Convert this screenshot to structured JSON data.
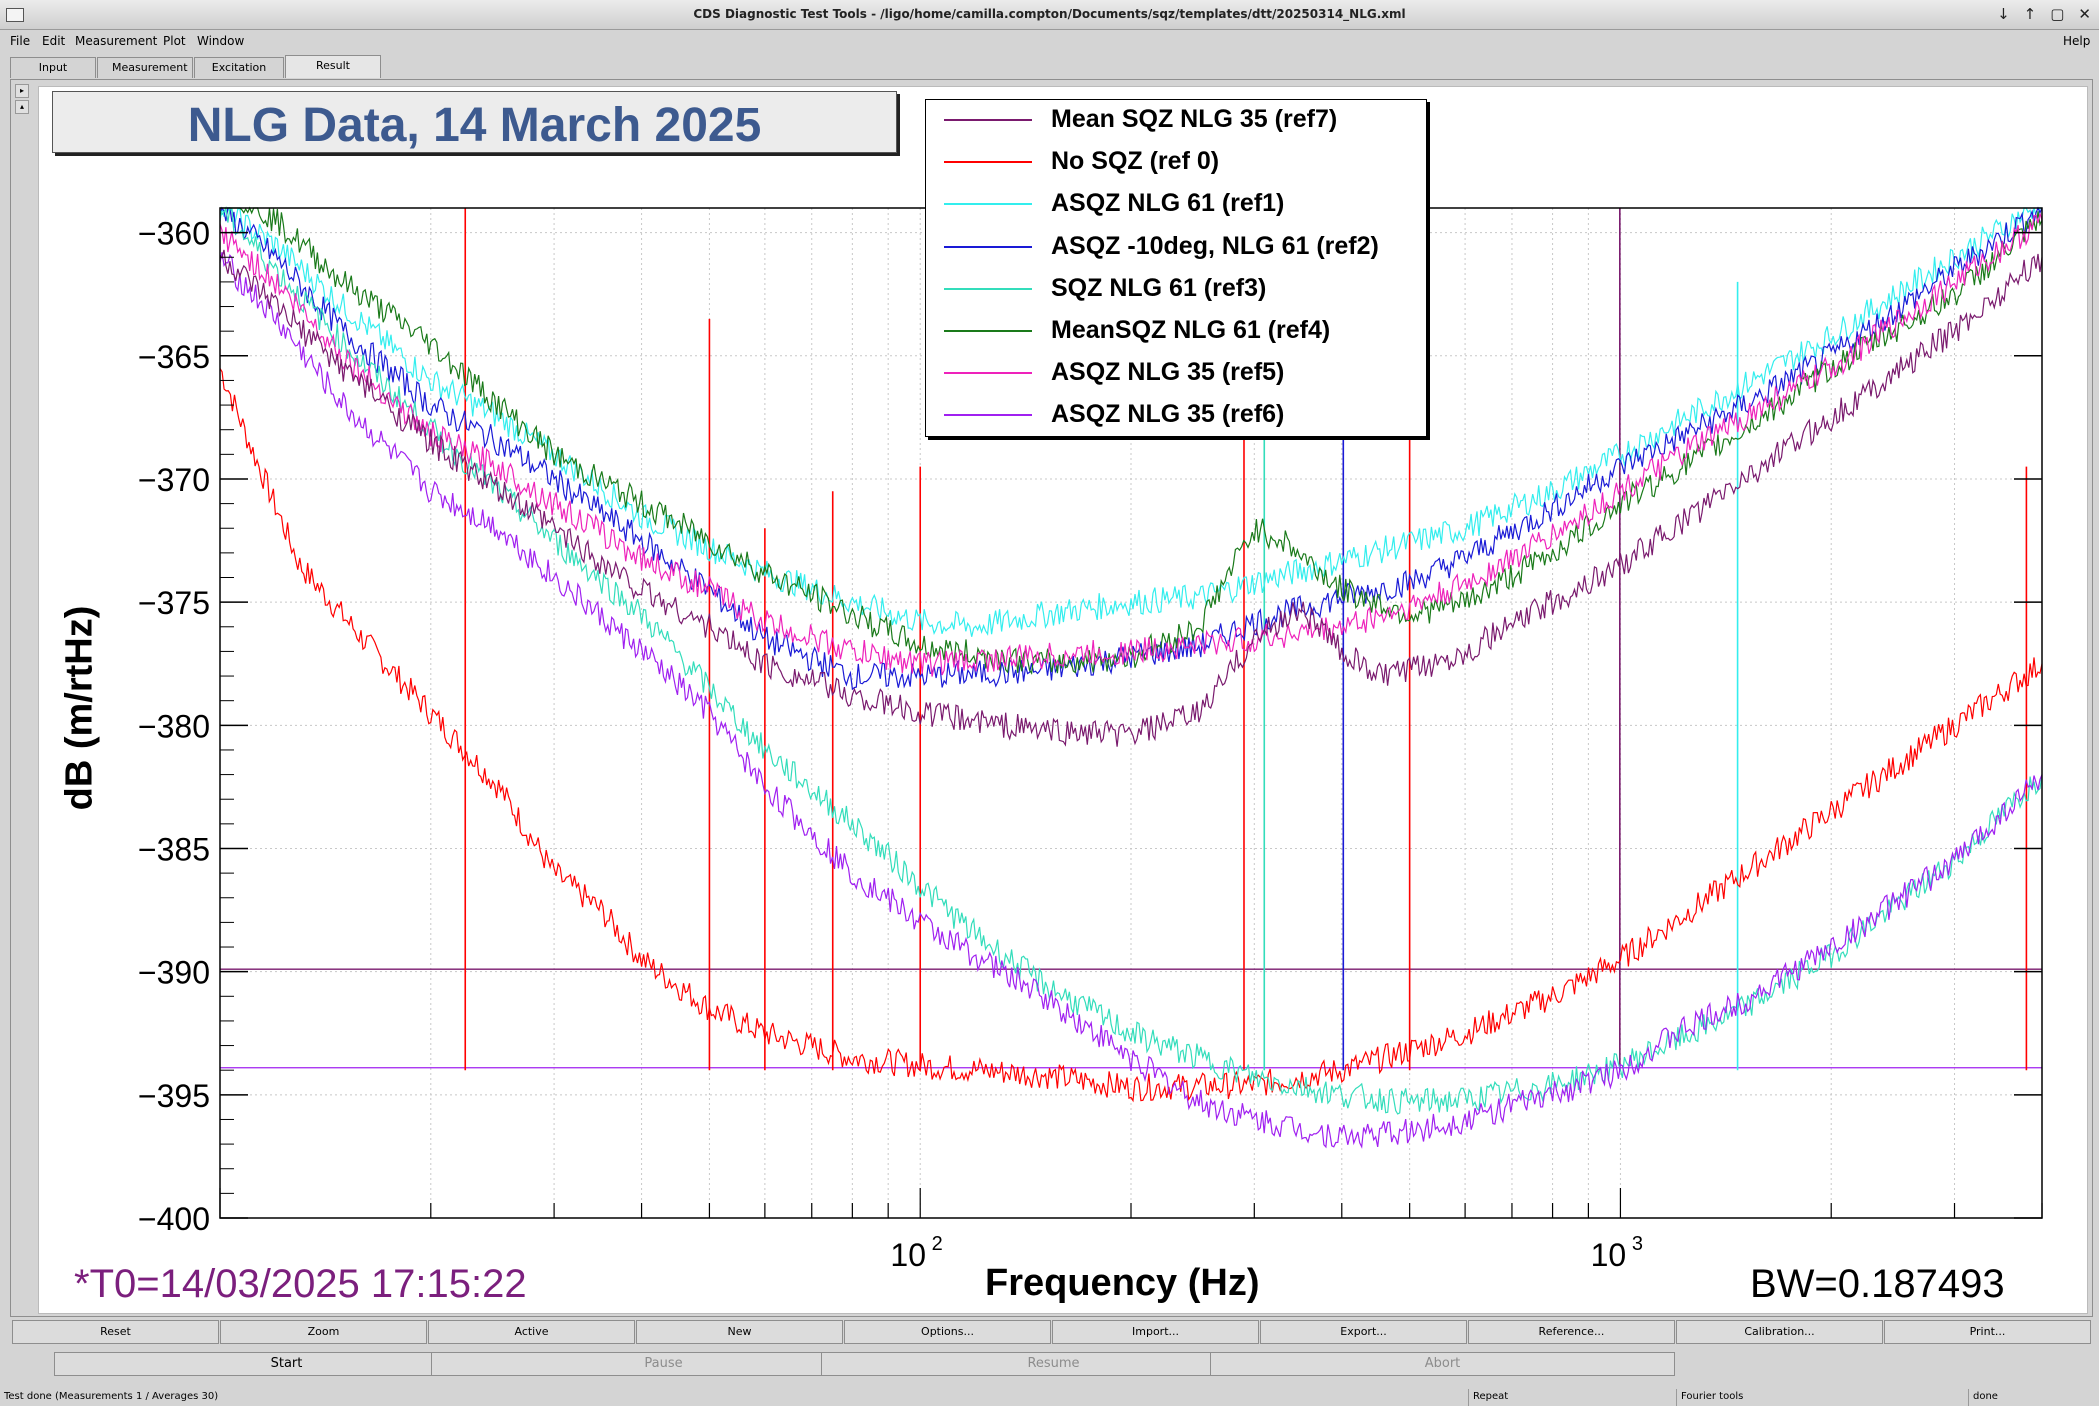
{
  "window": {
    "title": "CDS Diagnostic Test Tools - /ligo/home/camilla.compton/Documents/sqz/templates/dtt/20250314_NLG.xml",
    "controls": [
      "↓",
      "↑",
      "▢",
      "✕"
    ]
  },
  "menu": {
    "file": "File",
    "edit": "Edit",
    "measurement": "Measurement",
    "plot": "Plot",
    "window": "Window",
    "help": "Help"
  },
  "tabs": [
    "Input",
    "Measurement",
    "Excitation",
    "Result"
  ],
  "plot": {
    "title": "NLG Data, 14 March 2025",
    "t0": "*T0=14/03/2025 17:15:22",
    "bw": "BW=0.187493",
    "xlabel": "Frequency (Hz)",
    "ylabel": "dB (m/rtHz)",
    "legend": [
      {
        "label": "Mean SQZ NLG 35 (ref7)",
        "color": "#7a1a6e"
      },
      {
        "label": "No SQZ (ref 0)",
        "color": "#ff0000"
      },
      {
        "label": "ASQZ NLG 61 (ref1)",
        "color": "#33eeee"
      },
      {
        "label": "ASQZ -10deg, NLG 61 (ref2)",
        "color": "#1a1ad6"
      },
      {
        "label": "SQZ NLG 61 (ref3)",
        "color": "#33ddbb"
      },
      {
        "label": "MeanSQZ NLG 61 (ref4)",
        "color": "#1a7a1a"
      },
      {
        "label": "ASQZ NLG 35 (ref5)",
        "color": "#ee22bb"
      },
      {
        "label": "ASQZ NLG 35 (ref6)",
        "color": "#a020f0"
      }
    ]
  },
  "chart_data": {
    "type": "line",
    "xscale": "log",
    "xlim": [
      10,
      4000
    ],
    "ylim": [
      -400,
      -359
    ],
    "yticks": [
      -360,
      -365,
      -370,
      -375,
      -380,
      -385,
      -390,
      -395,
      -400
    ],
    "ytick_labels": [
      "−360",
      "−365",
      "−370",
      "−375",
      "−380",
      "−385",
      "−390",
      "−395",
      "−400"
    ],
    "xtick_labels": [
      {
        "x": 100,
        "label": "10",
        "exp": "2"
      },
      {
        "x": 1000,
        "label": "10",
        "exp": "3"
      }
    ],
    "hlines": [
      {
        "y": -389.9,
        "color": "#7a1a6e"
      },
      {
        "y": -393.9,
        "color": "#a020f0"
      }
    ],
    "series": [
      {
        "name": "No SQZ (ref 0)",
        "color": "#ff0000",
        "x": [
          10,
          11,
          13,
          16,
          20,
          25,
          30,
          35,
          40,
          50,
          60,
          80,
          100,
          150,
          200,
          300,
          400,
          500,
          600,
          800,
          1000,
          1500,
          2000,
          3000,
          4000
        ],
        "y": [
          -365.5,
          -368.5,
          -373.5,
          -376.5,
          -379.5,
          -382.5,
          -386,
          -387.5,
          -389.5,
          -391.5,
          -392.5,
          -393.5,
          -393.8,
          -394.2,
          -394.7,
          -394.6,
          -394,
          -393.2,
          -392.5,
          -391,
          -389.5,
          -386,
          -383.5,
          -380,
          -377.5
        ]
      },
      {
        "name": "ASQZ NLG 61 (ref1)",
        "color": "#33eeee",
        "x": [
          10,
          12,
          15,
          20,
          25,
          30,
          40,
          50,
          60,
          80,
          100,
          120,
          150,
          200,
          250,
          300,
          400,
          500,
          600,
          800,
          1000,
          1500,
          2000,
          3000,
          4000
        ],
        "y": [
          -359,
          -360.5,
          -363,
          -366,
          -367.5,
          -369,
          -371.5,
          -372.8,
          -373.8,
          -375,
          -375.8,
          -376,
          -375.5,
          -375,
          -374.8,
          -374.2,
          -373.3,
          -372.6,
          -372,
          -370.5,
          -369,
          -366.2,
          -364.2,
          -361,
          -358.8
        ]
      },
      {
        "name": "ASQZ -10deg, NLG 61 (ref2)",
        "color": "#1a1ad6",
        "x": [
          10,
          12,
          15,
          20,
          25,
          30,
          40,
          50,
          60,
          80,
          100,
          150,
          200,
          250,
          300,
          400,
          500,
          600,
          800,
          1000,
          1500,
          2000,
          3000,
          4000
        ],
        "y": [
          -359,
          -361,
          -364,
          -367,
          -368.5,
          -370,
          -372.5,
          -374.5,
          -376.5,
          -378,
          -378,
          -377.8,
          -377.2,
          -376.8,
          -375.8,
          -374.8,
          -374.2,
          -373.2,
          -371.2,
          -369.5,
          -367,
          -365,
          -361.5,
          -359
        ]
      },
      {
        "name": "SQZ NLG 61 (ref3)",
        "color": "#33ddbb",
        "x": [
          10,
          12,
          15,
          20,
          25,
          30,
          40,
          50,
          60,
          80,
          100,
          120,
          150,
          200,
          250,
          300,
          400,
          500,
          600,
          800,
          1000,
          1200,
          1500,
          2000,
          3000,
          4000
        ],
        "y": [
          -359,
          -361.5,
          -364.5,
          -368,
          -370.5,
          -372.5,
          -375.5,
          -378.5,
          -381,
          -384,
          -386.5,
          -388.5,
          -390.5,
          -392.5,
          -393.5,
          -394.3,
          -395,
          -395.3,
          -395.2,
          -394.6,
          -393.8,
          -392.8,
          -391.5,
          -389.3,
          -385.5,
          -382
        ]
      },
      {
        "name": "MeanSQZ NLG 61 (ref4)",
        "color": "#1a7a1a",
        "x": [
          10,
          12,
          15,
          20,
          25,
          30,
          40,
          50,
          60,
          80,
          100,
          150,
          200,
          250,
          280,
          300,
          330,
          400,
          500,
          600,
          800,
          1000,
          1500,
          2000,
          3000,
          4000
        ],
        "y": [
          -358,
          -359.5,
          -362,
          -364.5,
          -367,
          -369,
          -371,
          -372.5,
          -373.8,
          -375.5,
          -376.8,
          -377.5,
          -377.2,
          -376,
          -373.5,
          -372,
          -372.5,
          -374.5,
          -375.5,
          -375,
          -373,
          -371,
          -368,
          -365.5,
          -362.5,
          -359.5
        ]
      },
      {
        "name": "ASQZ NLG 35 (ref5)",
        "color": "#ee22bb",
        "x": [
          10,
          12,
          15,
          20,
          25,
          30,
          40,
          50,
          60,
          80,
          100,
          150,
          200,
          300,
          400,
          500,
          600,
          800,
          1000,
          1500,
          2000,
          3000,
          4000
        ],
        "y": [
          -360,
          -362,
          -365,
          -368.2,
          -369.5,
          -371,
          -373.2,
          -374.5,
          -375.8,
          -377,
          -377.5,
          -377.2,
          -377,
          -376.5,
          -376,
          -375.2,
          -374.3,
          -372.3,
          -370.5,
          -367.5,
          -365.5,
          -362,
          -359.5
        ]
      },
      {
        "name": "ASQZ NLG 35 (ref6)",
        "color": "#a020f0",
        "x": [
          10,
          12,
          15,
          20,
          25,
          30,
          40,
          50,
          60,
          80,
          100,
          150,
          200,
          250,
          300,
          400,
          500,
          600,
          800,
          1000,
          1200,
          1500,
          2000,
          3000,
          4000
        ],
        "y": [
          -361,
          -363.5,
          -367,
          -370.5,
          -372,
          -374,
          -377,
          -379.5,
          -382.5,
          -386,
          -388,
          -391,
          -393.5,
          -395.3,
          -396,
          -396.7,
          -396.5,
          -396,
          -395,
          -394,
          -392.5,
          -391.2,
          -389,
          -385.5,
          -382
        ]
      },
      {
        "name": "Mean SQZ NLG 35 (ref7)",
        "color": "#7a1a6e",
        "x": [
          10,
          12,
          15,
          20,
          25,
          30,
          40,
          50,
          60,
          80,
          100,
          150,
          200,
          250,
          300,
          350,
          400,
          450,
          500,
          600,
          800,
          1000,
          1500,
          2000,
          3000,
          4000
        ],
        "y": [
          -361,
          -363,
          -365.5,
          -368.5,
          -370.5,
          -372,
          -374.5,
          -376,
          -377.5,
          -378.8,
          -379.5,
          -380.2,
          -380.4,
          -379.5,
          -376.5,
          -375.2,
          -377,
          -378,
          -377.8,
          -377,
          -375,
          -373.5,
          -370,
          -367.5,
          -364,
          -361
        ]
      }
    ],
    "spikes": [
      {
        "x": 22.4,
        "top": -359,
        "color": "#ff0000"
      },
      {
        "x": 50,
        "top": -363.5,
        "color": "#ff0000"
      },
      {
        "x": 60,
        "top": -372,
        "color": "#ff0000"
      },
      {
        "x": 75,
        "top": -370.5,
        "color": "#ff0000"
      },
      {
        "x": 100,
        "top": -369.5,
        "color": "#ff0000"
      },
      {
        "x": 290,
        "top": -359,
        "color": "#ff0000"
      },
      {
        "x": 310,
        "top": -359,
        "color": "#33ddbb"
      },
      {
        "x": 402,
        "top": -359,
        "color": "#1a1ad6"
      },
      {
        "x": 500,
        "top": -359,
        "color": "#ff0000"
      },
      {
        "x": 998,
        "top": -359,
        "color": "#7a1a6e"
      },
      {
        "x": 1470,
        "top": -362,
        "color": "#33eeee"
      },
      {
        "x": 3800,
        "top": -369.5,
        "color": "#ff0000"
      }
    ]
  },
  "buttons_row1": [
    "Reset",
    "Zoom",
    "Active",
    "New",
    "Options...",
    "Import...",
    "Export...",
    "Reference...",
    "Calibration...",
    "Print..."
  ],
  "buttons_row2": [
    {
      "label": "Start",
      "enabled": true
    },
    {
      "label": "Pause",
      "enabled": false
    },
    {
      "label": "Resume",
      "enabled": false
    },
    {
      "label": "Abort",
      "enabled": false
    }
  ],
  "status": {
    "main": "Test done (Measurements 1 / Averages 30)",
    "repeat": "Repeat",
    "tools": "Fourier tools",
    "state": "done"
  }
}
